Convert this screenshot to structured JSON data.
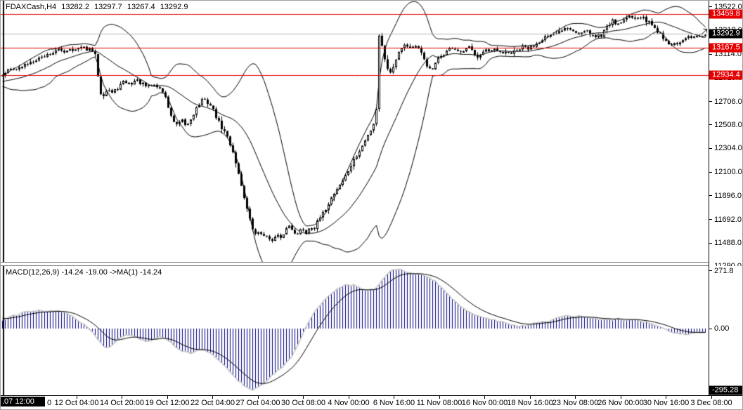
{
  "header": {
    "symbol": "FDAXCash,H4",
    "open": "13282.2",
    "high": "13297.7",
    "low": "13267.4",
    "close": "13292.9"
  },
  "macd_panel": {
    "label": "MACD(12,26,9) -14.24 -19.00  ->MA(1) -14.24"
  },
  "colors": {
    "background": "#ffffff",
    "candle_outline": "#000000",
    "bull_body": "#ffffff",
    "bear_body": "#000000",
    "bollinger": "#000000",
    "level_line": "#e60000",
    "price_line": "#b4b4b4",
    "macd_histogram": "#000080",
    "macd_outline": "#c8c8c8",
    "macd_signal": "#000000",
    "badge_red": "#e60000",
    "badge_black": "#000000"
  },
  "price_axis": {
    "ticks": [
      {
        "text": "13522.0",
        "value": 13522.0
      },
      {
        "text": "13318.0",
        "value": 13318.0
      },
      {
        "text": "13114.0",
        "value": 13114.0
      },
      {
        "text": "12910.0",
        "value": 12910.0
      },
      {
        "text": "12706.0",
        "value": 12706.0
      },
      {
        "text": "12508.0",
        "value": 12508.0
      },
      {
        "text": "12304.0",
        "value": 12304.0
      },
      {
        "text": "12100.0",
        "value": 12100.0
      },
      {
        "text": "11896.0",
        "value": 11896.0
      },
      {
        "text": "11692.0",
        "value": 11692.0
      },
      {
        "text": "11488.0",
        "value": 11488.0
      },
      {
        "text": "11290.0",
        "value": 11290.0
      }
    ],
    "badges": [
      {
        "text": "13459.8",
        "value": 13459.8,
        "type": "level",
        "color": "red"
      },
      {
        "text": "13292.9",
        "value": 13292.9,
        "type": "last-price",
        "color": "black"
      },
      {
        "text": "13167.5",
        "value": 13167.5,
        "type": "level",
        "color": "red"
      },
      {
        "text": "12934.4",
        "value": 12934.4,
        "type": "level",
        "color": "red"
      }
    ]
  },
  "macd_axis": {
    "ticks": [
      {
        "text": "271.8",
        "value": 271.8
      },
      {
        "text": "0.00",
        "value": 0
      }
    ],
    "badge": {
      "text": "-295.28",
      "value": -295.28
    }
  },
  "time_axis": {
    "badge": ".07 12:00",
    "partial_label": "0",
    "labels": [
      "12 Oct 04:00",
      "14 Oct 20:00",
      "19 Oct 12:00",
      "22 Oct 04:00",
      "27 Oct 04:00",
      "30 Oct 08:00",
      "4 Nov 00:00",
      "6 Nov 16:00",
      "11 Nov 08:00",
      "16 Nov 00:00",
      "18 Nov 16:00",
      "23 Nov 08:00",
      "26 Nov 00:00",
      "30 Nov 16:00",
      "3 Dec 08:00"
    ]
  },
  "chart_data": [
    {
      "type": "candlestick",
      "title": "FDAXCash H4",
      "ylabel": "price",
      "ylim": [
        11278,
        13546
      ],
      "grid": false,
      "horizontal_levels": [
        13459.8,
        13167.5,
        12934.4
      ],
      "last_price": 13292.9,
      "last_ohlc": {
        "open": 13282.2,
        "high": 13297.7,
        "low": 13267.4,
        "close": 13292.9
      },
      "vertical_line_label": ".07 12:00",
      "indicator": {
        "name": "Bollinger Bands",
        "period": 20,
        "deviation": 2
      },
      "extreme_low_wick": [
        388,
        11375
      ],
      "close_waypoints": [
        [
          2,
          12950
        ],
        [
          10,
          12975
        ],
        [
          18,
          13000
        ],
        [
          26,
          12990
        ],
        [
          34,
          13020
        ],
        [
          42,
          13050
        ],
        [
          50,
          13075
        ],
        [
          58,
          13090
        ],
        [
          66,
          13110
        ],
        [
          74,
          13130
        ],
        [
          82,
          13150
        ],
        [
          90,
          13140
        ],
        [
          98,
          13165
        ],
        [
          106,
          13150
        ],
        [
          114,
          13170
        ],
        [
          122,
          13160
        ],
        [
          130,
          13140
        ],
        [
          136,
          13080
        ],
        [
          140,
          12790
        ],
        [
          146,
          12770
        ],
        [
          152,
          12820
        ],
        [
          158,
          12780
        ],
        [
          164,
          12810
        ],
        [
          170,
          12850
        ],
        [
          176,
          12880
        ],
        [
          184,
          12855
        ],
        [
          192,
          12895
        ],
        [
          200,
          12860
        ],
        [
          208,
          12830
        ],
        [
          216,
          12855
        ],
        [
          224,
          12830
        ],
        [
          232,
          12780
        ],
        [
          240,
          12620
        ],
        [
          246,
          12520
        ],
        [
          252,
          12500
        ],
        [
          258,
          12540
        ],
        [
          264,
          12490
        ],
        [
          270,
          12560
        ],
        [
          278,
          12650
        ],
        [
          286,
          12720
        ],
        [
          294,
          12700
        ],
        [
          300,
          12660
        ],
        [
          308,
          12550
        ],
        [
          314,
          12480
        ],
        [
          320,
          12430
        ],
        [
          326,
          12340
        ],
        [
          332,
          12240
        ],
        [
          338,
          12080
        ],
        [
          344,
          11940
        ],
        [
          350,
          11780
        ],
        [
          356,
          11640
        ],
        [
          362,
          11560
        ],
        [
          368,
          11600
        ],
        [
          374,
          11540
        ],
        [
          380,
          11560
        ],
        [
          386,
          11500
        ],
        [
          392,
          11560
        ],
        [
          398,
          11520
        ],
        [
          404,
          11600
        ],
        [
          410,
          11640
        ],
        [
          416,
          11600
        ],
        [
          422,
          11560
        ],
        [
          428,
          11620
        ],
        [
          434,
          11580
        ],
        [
          440,
          11640
        ],
        [
          446,
          11620
        ],
        [
          452,
          11690
        ],
        [
          458,
          11740
        ],
        [
          464,
          11810
        ],
        [
          470,
          11880
        ],
        [
          476,
          11940
        ],
        [
          482,
          11990
        ],
        [
          488,
          12050
        ],
        [
          494,
          12110
        ],
        [
          500,
          12180
        ],
        [
          506,
          12240
        ],
        [
          512,
          12300
        ],
        [
          518,
          12370
        ],
        [
          524,
          12440
        ],
        [
          530,
          12520
        ],
        [
          534,
          12650
        ],
        [
          538,
          13280
        ],
        [
          542,
          13180
        ],
        [
          546,
          13080
        ],
        [
          550,
          13000
        ],
        [
          554,
          12950
        ],
        [
          558,
          13010
        ],
        [
          562,
          13080
        ],
        [
          566,
          13140
        ],
        [
          570,
          13180
        ],
        [
          576,
          13200
        ],
        [
          582,
          13170
        ],
        [
          588,
          13190
        ],
        [
          594,
          13150
        ],
        [
          600,
          13100
        ],
        [
          606,
          13020
        ],
        [
          612,
          12960
        ],
        [
          618,
          13030
        ],
        [
          624,
          13090
        ],
        [
          630,
          13120
        ],
        [
          636,
          13150
        ],
        [
          642,
          13170
        ],
        [
          648,
          13150
        ],
        [
          654,
          13120
        ],
        [
          660,
          13150
        ],
        [
          666,
          13170
        ],
        [
          672,
          13130
        ],
        [
          678,
          13100
        ],
        [
          684,
          13130
        ],
        [
          690,
          13150
        ],
        [
          696,
          13120
        ],
        [
          702,
          13150
        ],
        [
          708,
          13130
        ],
        [
          714,
          13110
        ],
        [
          720,
          13140
        ],
        [
          726,
          13120
        ],
        [
          732,
          13140
        ],
        [
          738,
          13160
        ],
        [
          744,
          13180
        ],
        [
          750,
          13160
        ],
        [
          756,
          13180
        ],
        [
          762,
          13210
        ],
        [
          768,
          13240
        ],
        [
          774,
          13265
        ],
        [
          780,
          13255
        ],
        [
          786,
          13280
        ],
        [
          792,
          13300
        ],
        [
          798,
          13330
        ],
        [
          804,
          13355
        ],
        [
          810,
          13340
        ],
        [
          816,
          13310
        ],
        [
          822,
          13280
        ],
        [
          828,
          13300
        ],
        [
          834,
          13310
        ],
        [
          840,
          13280
        ],
        [
          846,
          13260
        ],
        [
          852,
          13300
        ],
        [
          856,
          13230
        ],
        [
          860,
          13420
        ],
        [
          864,
          13300
        ],
        [
          868,
          13440
        ],
        [
          872,
          13400
        ],
        [
          876,
          13370
        ],
        [
          882,
          13395
        ],
        [
          888,
          13420
        ],
        [
          894,
          13440
        ],
        [
          900,
          13425
        ],
        [
          906,
          13445
        ],
        [
          912,
          13430
        ],
        [
          918,
          13405
        ],
        [
          924,
          13380
        ],
        [
          930,
          13340
        ],
        [
          936,
          13300
        ],
        [
          942,
          13260
        ],
        [
          948,
          13220
        ],
        [
          954,
          13185
        ],
        [
          960,
          13220
        ],
        [
          966,
          13200
        ],
        [
          972,
          13240
        ],
        [
          978,
          13260
        ],
        [
          984,
          13250
        ],
        [
          990,
          13270
        ],
        [
          996,
          13280
        ],
        [
          1002,
          13292.9
        ]
      ]
    },
    {
      "type": "macd",
      "title": "MACD(12,26,9)",
      "params": [
        12,
        26,
        9
      ],
      "last_value": -14.24,
      "last_signal": -19.0,
      "ma_applied": "MA(1) -14.24",
      "ylim": [
        -310,
        284
      ],
      "zero_label": "0.00",
      "waypoints": [
        [
          0,
          35
        ],
        [
          12,
          52
        ],
        [
          25,
          68
        ],
        [
          40,
          82
        ],
        [
          55,
          85
        ],
        [
          70,
          82
        ],
        [
          85,
          80
        ],
        [
          95,
          68
        ],
        [
          105,
          50
        ],
        [
          115,
          28
        ],
        [
          124,
          6
        ],
        [
          130,
          -18
        ],
        [
          140,
          -62
        ],
        [
          150,
          -92
        ],
        [
          158,
          -78
        ],
        [
          168,
          -50
        ],
        [
          178,
          -32
        ],
        [
          188,
          -36
        ],
        [
          198,
          -52
        ],
        [
          208,
          -62
        ],
        [
          218,
          -48
        ],
        [
          228,
          -36
        ],
        [
          238,
          -55
        ],
        [
          248,
          -82
        ],
        [
          258,
          -105
        ],
        [
          268,
          -118
        ],
        [
          278,
          -108
        ],
        [
          288,
          -96
        ],
        [
          298,
          -115
        ],
        [
          308,
          -145
        ],
        [
          318,
          -175
        ],
        [
          328,
          -208
        ],
        [
          338,
          -245
        ],
        [
          348,
          -272
        ],
        [
          356,
          -290
        ],
        [
          364,
          -284
        ],
        [
          374,
          -258
        ],
        [
          384,
          -228
        ],
        [
          394,
          -198
        ],
        [
          404,
          -168
        ],
        [
          414,
          -130
        ],
        [
          422,
          -85
        ],
        [
          428,
          -35
        ],
        [
          434,
          10
        ],
        [
          442,
          55
        ],
        [
          452,
          100
        ],
        [
          462,
          140
        ],
        [
          472,
          170
        ],
        [
          482,
          192
        ],
        [
          492,
          205
        ],
        [
          502,
          204
        ],
        [
          512,
          190
        ],
        [
          522,
          178
        ],
        [
          532,
          186
        ],
        [
          542,
          225
        ],
        [
          552,
          265
        ],
        [
          560,
          281
        ],
        [
          568,
          278
        ],
        [
          578,
          268
        ],
        [
          588,
          258
        ],
        [
          598,
          252
        ],
        [
          608,
          242
        ],
        [
          618,
          222
        ],
        [
          628,
          188
        ],
        [
          638,
          155
        ],
        [
          648,
          122
        ],
        [
          658,
          96
        ],
        [
          668,
          76
        ],
        [
          678,
          62
        ],
        [
          688,
          52
        ],
        [
          698,
          44
        ],
        [
          708,
          36
        ],
        [
          718,
          26
        ],
        [
          728,
          18
        ],
        [
          738,
          12
        ],
        [
          748,
          14
        ],
        [
          758,
          24
        ],
        [
          768,
          30
        ],
        [
          778,
          33
        ],
        [
          788,
          44
        ],
        [
          798,
          54
        ],
        [
          808,
          62
        ],
        [
          818,
          58
        ],
        [
          828,
          56
        ],
        [
          838,
          52
        ],
        [
          848,
          44
        ],
        [
          858,
          40
        ],
        [
          868,
          42
        ],
        [
          878,
          46
        ],
        [
          888,
          41
        ],
        [
          898,
          43
        ],
        [
          908,
          36
        ],
        [
          918,
          30
        ],
        [
          928,
          20
        ],
        [
          938,
          6
        ],
        [
          948,
          -8
        ],
        [
          958,
          -18
        ],
        [
          968,
          -25
        ],
        [
          976,
          -30
        ],
        [
          984,
          -24
        ],
        [
          992,
          -18
        ],
        [
          1002,
          -14.24
        ]
      ]
    }
  ]
}
